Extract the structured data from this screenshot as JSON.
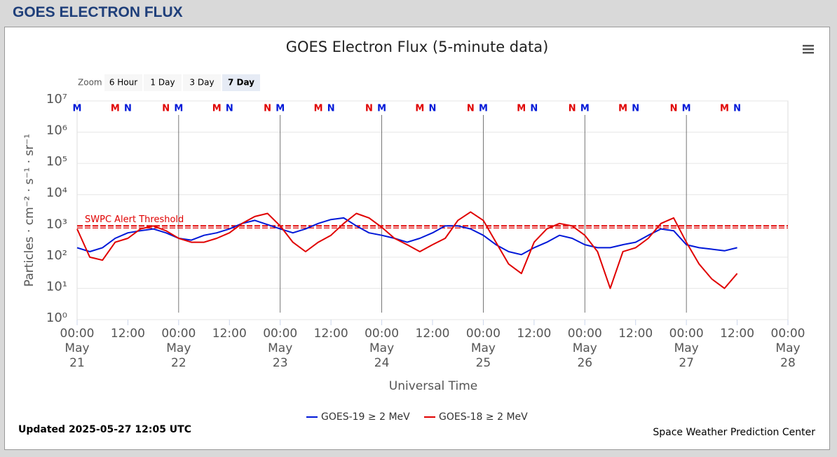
{
  "page": {
    "header": "GOES ELECTRON FLUX",
    "zoom": {
      "label": "Zoom",
      "buttons": [
        "6 Hour",
        "1 Day",
        "3 Day",
        "7 Day"
      ],
      "selected": 3
    },
    "updated": "Updated 2025-05-27 12:05 UTC",
    "credit": "Space Weather Prediction Center"
  },
  "chart_data": {
    "type": "line",
    "title": "GOES Electron Flux (5-minute data)",
    "x_label": "Universal Time",
    "y_label": "Particles · cm⁻² · s⁻¹ · sr⁻¹",
    "yscale": "log",
    "grid": true,
    "ylim": [
      1,
      10000000
    ],
    "yticks": [
      {
        "value": 1,
        "label": "10⁰"
      },
      {
        "value": 10,
        "label": "10¹"
      },
      {
        "value": 100,
        "label": "10²"
      },
      {
        "value": 1000,
        "label": "10³"
      },
      {
        "value": 10000,
        "label": "10⁴"
      },
      {
        "value": 100000,
        "label": "10⁵"
      },
      {
        "value": 1000000,
        "label": "10⁶"
      },
      {
        "value": 10000000,
        "label": "10⁷"
      }
    ],
    "xlim": [
      "05-21T00:00",
      "05-28T00:00"
    ],
    "xticks": [
      {
        "value": "05-21T00:00",
        "label": "00:00 May 21"
      },
      {
        "value": "05-21T12:00",
        "label": "12:00"
      },
      {
        "value": "05-22T00:00",
        "label": "00:00 May 22"
      },
      {
        "value": "05-22T12:00",
        "label": "12:00"
      },
      {
        "value": "05-23T00:00",
        "label": "00:00 May 23"
      },
      {
        "value": "05-23T12:00",
        "label": "12:00"
      },
      {
        "value": "05-24T00:00",
        "label": "00:00 May 24"
      },
      {
        "value": "05-24T12:00",
        "label": "12:00"
      },
      {
        "value": "05-25T00:00",
        "label": "00:00 May 25"
      },
      {
        "value": "05-25T12:00",
        "label": "12:00"
      },
      {
        "value": "05-26T00:00",
        "label": "00:00 May 26"
      },
      {
        "value": "05-26T12:00",
        "label": "12:00"
      },
      {
        "value": "05-27T00:00",
        "label": "00:00 May 27"
      },
      {
        "value": "05-27T12:00",
        "label": "12:00"
      },
      {
        "value": "05-28T00:00",
        "label": "00:00 May 28"
      }
    ],
    "threshold": {
      "label": "SWPC Alert Threshold",
      "value": 1000,
      "color": "#e00000"
    },
    "x": [
      "05-21T00:00",
      "05-21T03:00",
      "05-21T06:00",
      "05-21T09:00",
      "05-21T12:00",
      "05-21T15:00",
      "05-21T18:00",
      "05-21T21:00",
      "05-22T00:00",
      "05-22T03:00",
      "05-22T06:00",
      "05-22T09:00",
      "05-22T12:00",
      "05-22T15:00",
      "05-22T18:00",
      "05-22T21:00",
      "05-23T00:00",
      "05-23T03:00",
      "05-23T06:00",
      "05-23T09:00",
      "05-23T12:00",
      "05-23T15:00",
      "05-23T18:00",
      "05-23T21:00",
      "05-24T00:00",
      "05-24T03:00",
      "05-24T06:00",
      "05-24T09:00",
      "05-24T12:00",
      "05-24T15:00",
      "05-24T18:00",
      "05-24T21:00",
      "05-25T00:00",
      "05-25T03:00",
      "05-25T06:00",
      "05-25T09:00",
      "05-25T12:00",
      "05-25T15:00",
      "05-25T18:00",
      "05-25T21:00",
      "05-26T00:00",
      "05-26T03:00",
      "05-26T06:00",
      "05-26T09:00",
      "05-26T12:00",
      "05-26T15:00",
      "05-26T18:00",
      "05-26T21:00",
      "05-27T00:00",
      "05-27T03:00",
      "05-27T06:00",
      "05-27T09:00",
      "05-27T12:00"
    ],
    "marker_labels": {
      "midnight": "M",
      "noon": "N"
    },
    "series": [
      {
        "name": "GOES-19 ≥ 2 MeV",
        "color": "#0018d8",
        "values": [
          200,
          150,
          200,
          400,
          600,
          700,
          800,
          600,
          400,
          350,
          500,
          600,
          800,
          1200,
          1500,
          1100,
          800,
          600,
          800,
          1200,
          1600,
          1800,
          1000,
          600,
          500,
          400,
          300,
          400,
          600,
          1000,
          1000,
          800,
          500,
          250,
          150,
          120,
          200,
          300,
          500,
          400,
          250,
          200,
          200,
          250,
          300,
          500,
          800,
          700,
          250,
          200,
          180,
          160,
          200
        ],
        "midnight": [
          "05-21T00:00",
          "05-22T00:00",
          "05-23T00:00",
          "05-24T00:00",
          "05-25T00:00",
          "05-26T00:00",
          "05-27T00:00"
        ],
        "noon": [
          "05-21T12:00",
          "05-22T12:00",
          "05-23T12:00",
          "05-24T12:00",
          "05-25T12:00",
          "05-26T12:00",
          "05-27T12:00"
        ]
      },
      {
        "name": "GOES-18 ≥ 2 MeV",
        "color": "#e00000",
        "values": [
          800,
          100,
          80,
          300,
          400,
          800,
          1000,
          700,
          400,
          300,
          300,
          400,
          600,
          1200,
          2000,
          2500,
          1000,
          300,
          150,
          300,
          500,
          1200,
          2500,
          1800,
          900,
          400,
          250,
          150,
          250,
          400,
          1500,
          2800,
          1500,
          300,
          60,
          30,
          300,
          800,
          1200,
          1000,
          500,
          150,
          10,
          150,
          200,
          400,
          1200,
          1800,
          300,
          60,
          20,
          10,
          30
        ],
        "midnight": [
          "05-21T09:00",
          "05-22T09:00",
          "05-23T09:00",
          "05-24T09:00",
          "05-25T09:00",
          "05-26T09:00",
          "05-27T09:00"
        ],
        "noon": [
          "05-21T21:00",
          "05-22T21:00",
          "05-23T21:00",
          "05-24T21:00",
          "05-25T21:00",
          "05-26T21:00"
        ]
      }
    ]
  }
}
